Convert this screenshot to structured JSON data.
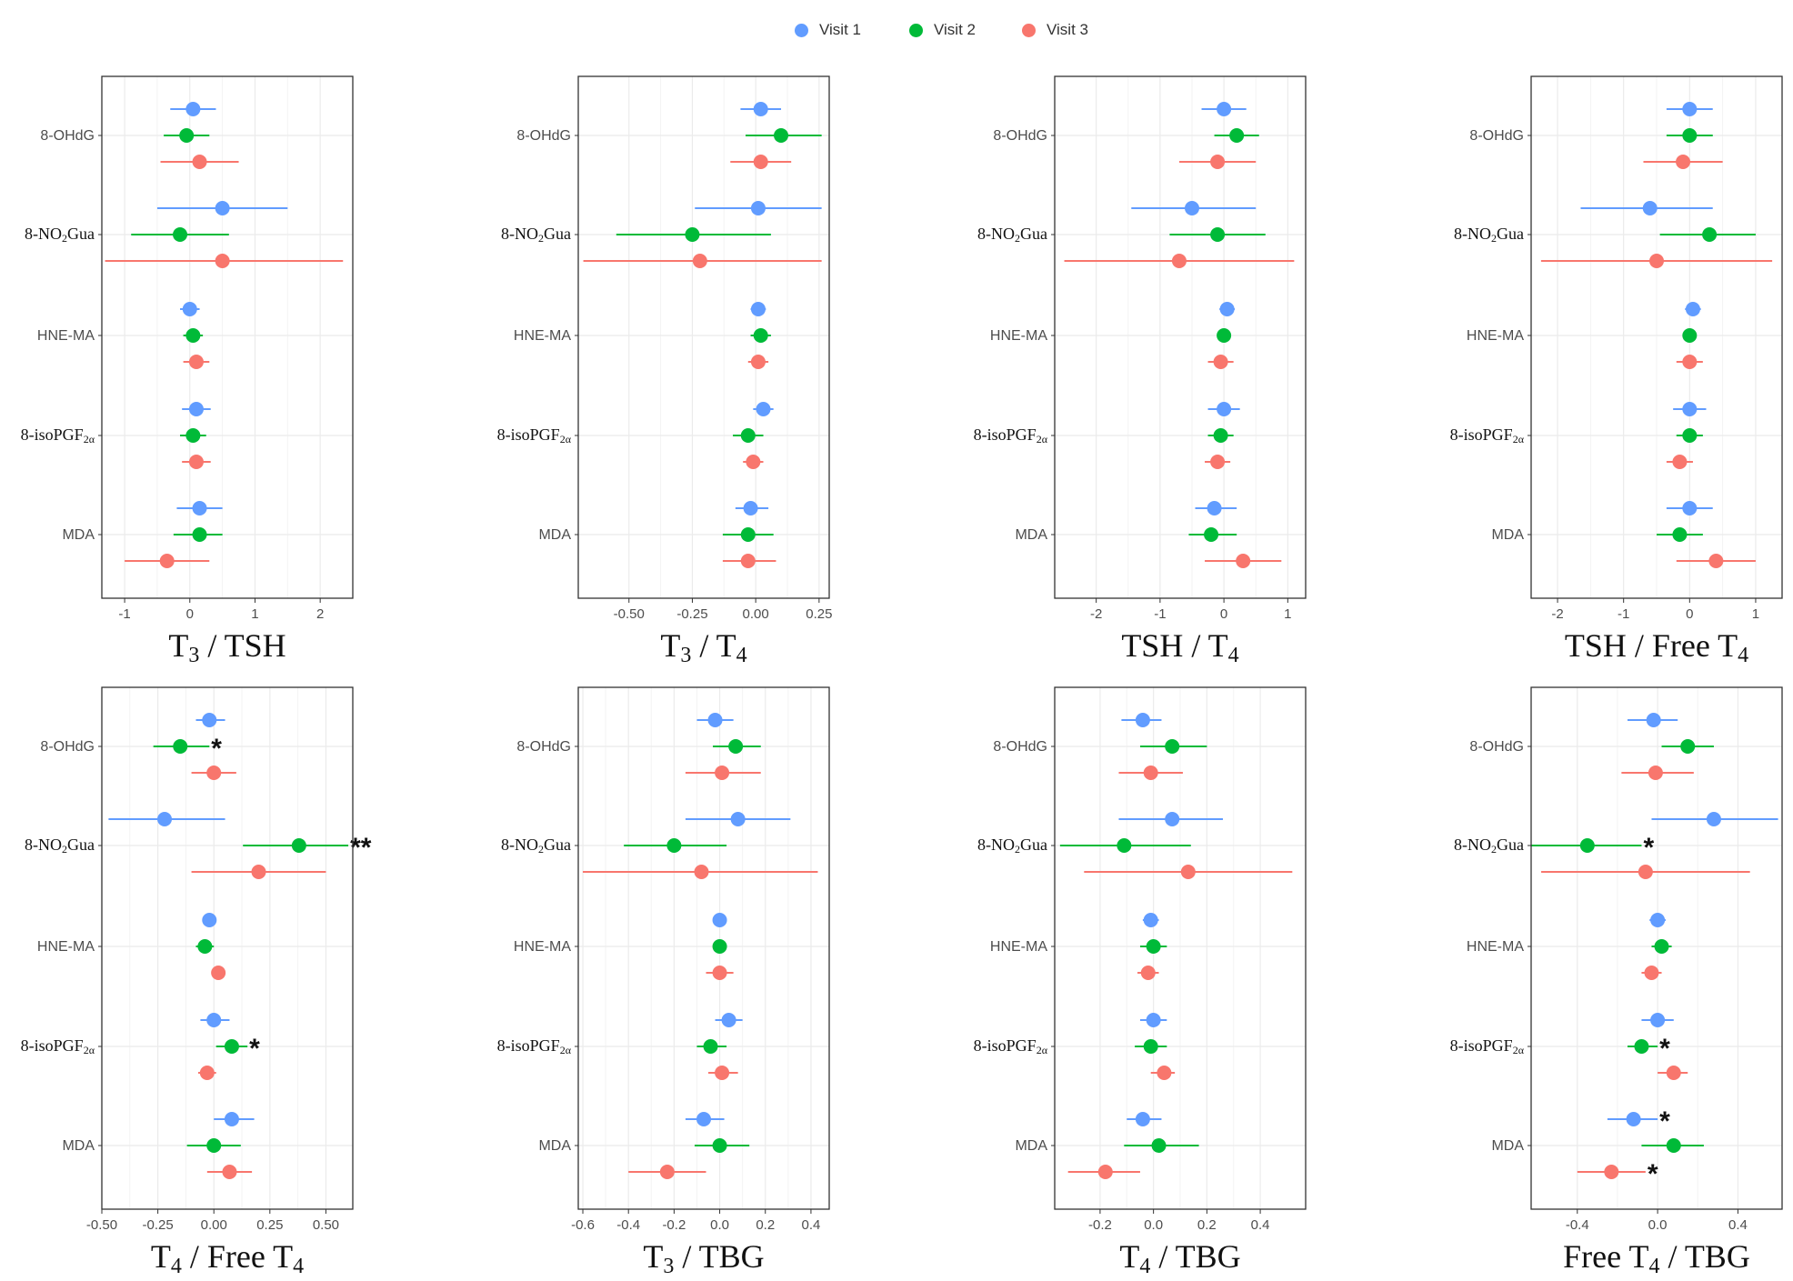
{
  "legend": {
    "items": [
      {
        "label": "Visit 1",
        "color": "#619CFF"
      },
      {
        "label": "Visit 2",
        "color": "#00BA38"
      },
      {
        "label": "Visit 3",
        "color": "#F8766D"
      }
    ]
  },
  "rows": [
    "8-OHdG",
    "8-NO₂Gua",
    "HNE-MA",
    "8-isoPGF₂α",
    "MDA"
  ],
  "chart_data": [
    {
      "type": "forest",
      "title": "T₃ / TSH",
      "xlim": [
        -1.35,
        2.5
      ],
      "ticks": [
        "-1",
        "0",
        "1",
        "2"
      ],
      "tick_values": [
        -1,
        0,
        1,
        2
      ],
      "series": [
        {
          "name": "Visit 1",
          "points": [
            {
              "est": 0.05,
              "lo": -0.3,
              "hi": 0.4
            },
            {
              "est": 0.5,
              "lo": -0.5,
              "hi": 1.5
            },
            {
              "est": 0.0,
              "lo": -0.15,
              "hi": 0.15
            },
            {
              "est": 0.1,
              "lo": -0.12,
              "hi": 0.32
            },
            {
              "est": 0.15,
              "lo": -0.2,
              "hi": 0.5
            }
          ]
        },
        {
          "name": "Visit 2",
          "points": [
            {
              "est": -0.05,
              "lo": -0.4,
              "hi": 0.3
            },
            {
              "est": -0.15,
              "lo": -0.9,
              "hi": 0.6
            },
            {
              "est": 0.05,
              "lo": -0.1,
              "hi": 0.2
            },
            {
              "est": 0.05,
              "lo": -0.15,
              "hi": 0.25
            },
            {
              "est": 0.15,
              "lo": -0.25,
              "hi": 0.5
            }
          ]
        },
        {
          "name": "Visit 3",
          "points": [
            {
              "est": 0.15,
              "lo": -0.45,
              "hi": 0.75
            },
            {
              "est": 0.5,
              "lo": -1.3,
              "hi": 2.35
            },
            {
              "est": 0.1,
              "lo": -0.1,
              "hi": 0.3
            },
            {
              "est": 0.1,
              "lo": -0.12,
              "hi": 0.32
            },
            {
              "est": -0.35,
              "lo": -1.0,
              "hi": 0.3
            }
          ]
        }
      ],
      "annotations": []
    },
    {
      "type": "forest",
      "title": "T₃ / T₄",
      "xlim": [
        -0.7,
        0.29
      ],
      "ticks": [
        "-0.50",
        "-0.25",
        "0.00",
        "0.25"
      ],
      "tick_values": [
        -0.5,
        -0.25,
        0,
        0.25
      ],
      "series": [
        {
          "name": "Visit 1",
          "points": [
            {
              "est": 0.02,
              "lo": -0.06,
              "hi": 0.1
            },
            {
              "est": 0.01,
              "lo": -0.24,
              "hi": 0.26
            },
            {
              "est": 0.01,
              "lo": -0.02,
              "hi": 0.04
            },
            {
              "est": 0.03,
              "lo": -0.01,
              "hi": 0.07
            },
            {
              "est": -0.02,
              "lo": -0.08,
              "hi": 0.05
            }
          ]
        },
        {
          "name": "Visit 2",
          "points": [
            {
              "est": 0.1,
              "lo": -0.04,
              "hi": 0.26
            },
            {
              "est": -0.25,
              "lo": -0.55,
              "hi": 0.06
            },
            {
              "est": 0.02,
              "lo": -0.02,
              "hi": 0.06
            },
            {
              "est": -0.03,
              "lo": -0.09,
              "hi": 0.03
            },
            {
              "est": -0.03,
              "lo": -0.13,
              "hi": 0.07
            }
          ]
        },
        {
          "name": "Visit 3",
          "points": [
            {
              "est": 0.02,
              "lo": -0.1,
              "hi": 0.14
            },
            {
              "est": -0.22,
              "lo": -0.68,
              "hi": 0.26
            },
            {
              "est": 0.01,
              "lo": -0.03,
              "hi": 0.05
            },
            {
              "est": -0.01,
              "lo": -0.05,
              "hi": 0.03
            },
            {
              "est": -0.03,
              "lo": -0.13,
              "hi": 0.08
            }
          ]
        }
      ],
      "annotations": []
    },
    {
      "type": "forest",
      "title": "TSH / T₄",
      "xlim": [
        -2.65,
        1.28
      ],
      "ticks": [
        "-2",
        "-1",
        "0",
        "1"
      ],
      "tick_values": [
        -2,
        -1,
        0,
        1
      ],
      "series": [
        {
          "name": "Visit 1",
          "points": [
            {
              "est": 0.0,
              "lo": -0.35,
              "hi": 0.35
            },
            {
              "est": -0.5,
              "lo": -1.45,
              "hi": 0.5
            },
            {
              "est": 0.05,
              "lo": -0.07,
              "hi": 0.17
            },
            {
              "est": 0.0,
              "lo": -0.25,
              "hi": 0.25
            },
            {
              "est": -0.15,
              "lo": -0.45,
              "hi": 0.2
            }
          ]
        },
        {
          "name": "Visit 2",
          "points": [
            {
              "est": 0.2,
              "lo": -0.15,
              "hi": 0.55
            },
            {
              "est": -0.1,
              "lo": -0.85,
              "hi": 0.65
            },
            {
              "est": 0.0,
              "lo": -0.1,
              "hi": 0.1
            },
            {
              "est": -0.05,
              "lo": -0.25,
              "hi": 0.15
            },
            {
              "est": -0.2,
              "lo": -0.55,
              "hi": 0.2
            }
          ]
        },
        {
          "name": "Visit 3",
          "points": [
            {
              "est": -0.1,
              "lo": -0.7,
              "hi": 0.5
            },
            {
              "est": -0.7,
              "lo": -2.5,
              "hi": 1.1
            },
            {
              "est": -0.05,
              "lo": -0.25,
              "hi": 0.15
            },
            {
              "est": -0.1,
              "lo": -0.3,
              "hi": 0.1
            },
            {
              "est": 0.3,
              "lo": -0.3,
              "hi": 0.9
            }
          ]
        }
      ],
      "annotations": []
    },
    {
      "type": "forest",
      "title": "TSH / Free T₄",
      "xlim": [
        -2.4,
        1.4
      ],
      "ticks": [
        "-2",
        "-1",
        "0",
        "1"
      ],
      "tick_values": [
        -2,
        -1,
        0,
        1
      ],
      "series": [
        {
          "name": "Visit 1",
          "points": [
            {
              "est": 0.0,
              "lo": -0.35,
              "hi": 0.35
            },
            {
              "est": -0.6,
              "lo": -1.65,
              "hi": 0.35
            },
            {
              "est": 0.05,
              "lo": -0.07,
              "hi": 0.17
            },
            {
              "est": 0.0,
              "lo": -0.25,
              "hi": 0.25
            },
            {
              "est": 0.0,
              "lo": -0.35,
              "hi": 0.35
            }
          ]
        },
        {
          "name": "Visit 2",
          "points": [
            {
              "est": 0.0,
              "lo": -0.35,
              "hi": 0.35
            },
            {
              "est": 0.3,
              "lo": -0.45,
              "hi": 1.0
            },
            {
              "est": 0.0,
              "lo": -0.1,
              "hi": 0.1
            },
            {
              "est": 0.0,
              "lo": -0.2,
              "hi": 0.2
            },
            {
              "est": -0.15,
              "lo": -0.5,
              "hi": 0.2
            }
          ]
        },
        {
          "name": "Visit 3",
          "points": [
            {
              "est": -0.1,
              "lo": -0.7,
              "hi": 0.5
            },
            {
              "est": -0.5,
              "lo": -2.25,
              "hi": 1.25
            },
            {
              "est": 0.0,
              "lo": -0.2,
              "hi": 0.2
            },
            {
              "est": -0.15,
              "lo": -0.35,
              "hi": 0.05
            },
            {
              "est": 0.4,
              "lo": -0.2,
              "hi": 1.0
            }
          ]
        }
      ],
      "annotations": []
    },
    {
      "type": "forest",
      "title": "T₄ / Free T₄",
      "xlim": [
        -0.5,
        0.62
      ],
      "ticks": [
        "-0.50",
        "-0.25",
        "0.00",
        "0.25",
        "0.50"
      ],
      "tick_values": [
        -0.5,
        -0.25,
        0,
        0.25,
        0.5
      ],
      "series": [
        {
          "name": "Visit 1",
          "points": [
            {
              "est": -0.02,
              "lo": -0.08,
              "hi": 0.05
            },
            {
              "est": -0.22,
              "lo": -0.47,
              "hi": 0.05
            },
            {
              "est": -0.02,
              "lo": -0.05,
              "hi": 0.01
            },
            {
              "est": 0.0,
              "lo": -0.06,
              "hi": 0.07
            },
            {
              "est": 0.08,
              "lo": 0.0,
              "hi": 0.18
            }
          ]
        },
        {
          "name": "Visit 2",
          "points": [
            {
              "est": -0.15,
              "lo": -0.27,
              "hi": -0.02
            },
            {
              "est": 0.38,
              "lo": 0.13,
              "hi": 0.6
            },
            {
              "est": -0.04,
              "lo": -0.08,
              "hi": 0.0
            },
            {
              "est": 0.08,
              "lo": 0.01,
              "hi": 0.15
            },
            {
              "est": 0.0,
              "lo": -0.12,
              "hi": 0.12
            }
          ]
        },
        {
          "name": "Visit 3",
          "points": [
            {
              "est": 0.0,
              "lo": -0.1,
              "hi": 0.1
            },
            {
              "est": 0.2,
              "lo": -0.1,
              "hi": 0.5
            },
            {
              "est": 0.02,
              "lo": -0.01,
              "hi": 0.05
            },
            {
              "est": -0.03,
              "lo": -0.07,
              "hi": 0.01
            },
            {
              "est": 0.07,
              "lo": -0.03,
              "hi": 0.17
            }
          ]
        }
      ],
      "annotations": [
        {
          "row": 0,
          "series": 1,
          "text": "*"
        },
        {
          "row": 1,
          "series": 1,
          "text": "**"
        },
        {
          "row": 3,
          "series": 1,
          "text": "*"
        }
      ]
    },
    {
      "type": "forest",
      "title": "T₃ / TBG",
      "xlim": [
        -0.62,
        0.48
      ],
      "ticks": [
        "-0.6",
        "-0.4",
        "-0.2",
        "0.0",
        "0.2",
        "0.4"
      ],
      "tick_values": [
        -0.6,
        -0.4,
        -0.2,
        0,
        0.2,
        0.4
      ],
      "series": [
        {
          "name": "Visit 1",
          "points": [
            {
              "est": -0.02,
              "lo": -0.1,
              "hi": 0.06
            },
            {
              "est": 0.08,
              "lo": -0.15,
              "hi": 0.31
            },
            {
              "est": 0.0,
              "lo": -0.03,
              "hi": 0.03
            },
            {
              "est": 0.04,
              "lo": -0.02,
              "hi": 0.1
            },
            {
              "est": -0.07,
              "lo": -0.15,
              "hi": 0.02
            }
          ]
        },
        {
          "name": "Visit 2",
          "points": [
            {
              "est": 0.07,
              "lo": -0.03,
              "hi": 0.18
            },
            {
              "est": -0.2,
              "lo": -0.42,
              "hi": 0.03
            },
            {
              "est": 0.0,
              "lo": -0.03,
              "hi": 0.03
            },
            {
              "est": -0.04,
              "lo": -0.1,
              "hi": 0.03
            },
            {
              "est": 0.0,
              "lo": -0.11,
              "hi": 0.13
            }
          ]
        },
        {
          "name": "Visit 3",
          "points": [
            {
              "est": 0.01,
              "lo": -0.15,
              "hi": 0.18
            },
            {
              "est": -0.08,
              "lo": -0.6,
              "hi": 0.43
            },
            {
              "est": 0.0,
              "lo": -0.06,
              "hi": 0.06
            },
            {
              "est": 0.01,
              "lo": -0.05,
              "hi": 0.08
            },
            {
              "est": -0.23,
              "lo": -0.4,
              "hi": -0.06
            }
          ]
        }
      ],
      "annotations": []
    },
    {
      "type": "forest",
      "title": "T₄ / TBG",
      "xlim": [
        -0.37,
        0.57
      ],
      "ticks": [
        "-0.2",
        "0.0",
        "0.2",
        "0.4"
      ],
      "tick_values": [
        -0.2,
        0,
        0.2,
        0.4
      ],
      "series": [
        {
          "name": "Visit 1",
          "points": [
            {
              "est": -0.04,
              "lo": -0.12,
              "hi": 0.03
            },
            {
              "est": 0.07,
              "lo": -0.13,
              "hi": 0.26
            },
            {
              "est": -0.01,
              "lo": -0.04,
              "hi": 0.02
            },
            {
              "est": 0.0,
              "lo": -0.05,
              "hi": 0.05
            },
            {
              "est": -0.04,
              "lo": -0.1,
              "hi": 0.03
            }
          ]
        },
        {
          "name": "Visit 2",
          "points": [
            {
              "est": 0.07,
              "lo": -0.05,
              "hi": 0.2
            },
            {
              "est": -0.11,
              "lo": -0.35,
              "hi": 0.14
            },
            {
              "est": 0.0,
              "lo": -0.05,
              "hi": 0.05
            },
            {
              "est": -0.01,
              "lo": -0.07,
              "hi": 0.05
            },
            {
              "est": 0.02,
              "lo": -0.11,
              "hi": 0.17
            }
          ]
        },
        {
          "name": "Visit 3",
          "points": [
            {
              "est": -0.01,
              "lo": -0.13,
              "hi": 0.11
            },
            {
              "est": 0.13,
              "lo": -0.26,
              "hi": 0.52
            },
            {
              "est": -0.02,
              "lo": -0.06,
              "hi": 0.02
            },
            {
              "est": 0.04,
              "lo": -0.01,
              "hi": 0.08
            },
            {
              "est": -0.18,
              "lo": -0.32,
              "hi": -0.05
            }
          ]
        }
      ],
      "annotations": []
    },
    {
      "type": "forest",
      "title": "Free T₄ / TBG",
      "xlim": [
        -0.63,
        0.62
      ],
      "ticks": [
        "-0.4",
        "0.0",
        "0.4"
      ],
      "tick_values": [
        -0.4,
        0,
        0.4
      ],
      "series": [
        {
          "name": "Visit 1",
          "points": [
            {
              "est": -0.02,
              "lo": -0.15,
              "hi": 0.1
            },
            {
              "est": 0.28,
              "lo": -0.03,
              "hi": 0.6
            },
            {
              "est": 0.0,
              "lo": -0.04,
              "hi": 0.04
            },
            {
              "est": 0.0,
              "lo": -0.08,
              "hi": 0.08
            },
            {
              "est": -0.12,
              "lo": -0.25,
              "hi": 0.0
            }
          ]
        },
        {
          "name": "Visit 2",
          "points": [
            {
              "est": 0.15,
              "lo": 0.02,
              "hi": 0.28
            },
            {
              "est": -0.35,
              "lo": -0.63,
              "hi": -0.08
            },
            {
              "est": 0.02,
              "lo": -0.03,
              "hi": 0.07
            },
            {
              "est": -0.08,
              "lo": -0.15,
              "hi": 0.0
            },
            {
              "est": 0.08,
              "lo": -0.08,
              "hi": 0.23
            }
          ]
        },
        {
          "name": "Visit 3",
          "points": [
            {
              "est": -0.01,
              "lo": -0.18,
              "hi": 0.18
            },
            {
              "est": -0.06,
              "lo": -0.58,
              "hi": 0.46
            },
            {
              "est": -0.03,
              "lo": -0.08,
              "hi": 0.02
            },
            {
              "est": 0.08,
              "lo": 0.0,
              "hi": 0.15
            },
            {
              "est": -0.23,
              "lo": -0.4,
              "hi": -0.06
            }
          ]
        }
      ],
      "annotations": [
        {
          "row": 1,
          "series": 1,
          "text": "*"
        },
        {
          "row": 3,
          "series": 1,
          "text": "*"
        },
        {
          "row": 4,
          "series": 0,
          "text": "*"
        },
        {
          "row": 4,
          "series": 2,
          "text": "*"
        }
      ]
    }
  ]
}
